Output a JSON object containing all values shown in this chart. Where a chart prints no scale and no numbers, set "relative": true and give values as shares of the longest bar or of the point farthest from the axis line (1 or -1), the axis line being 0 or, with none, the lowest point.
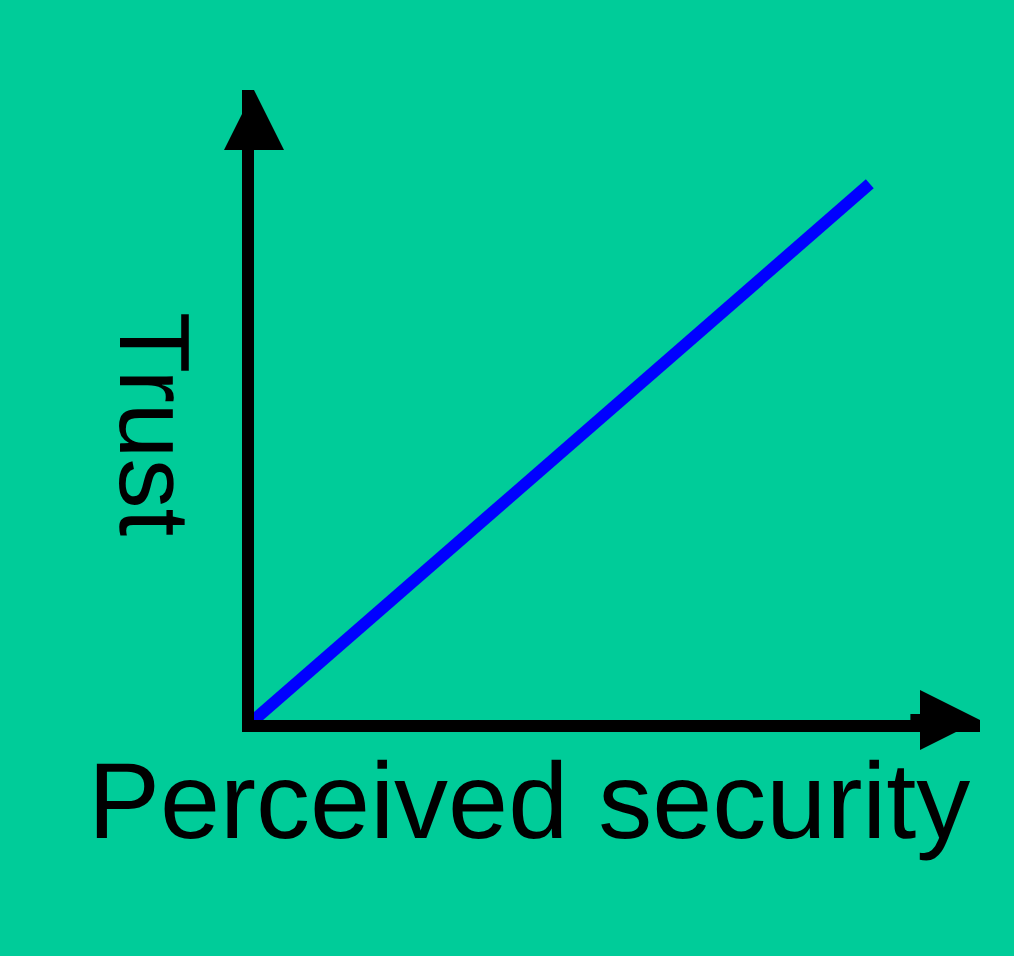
{
  "chart_data": {
    "type": "line",
    "relative": true,
    "categories": [
      null,
      null
    ],
    "values": [
      0,
      1
    ],
    "color": "#0000ff",
    "xlabel": "Perceived security",
    "ylabel": "Trust"
  }
}
